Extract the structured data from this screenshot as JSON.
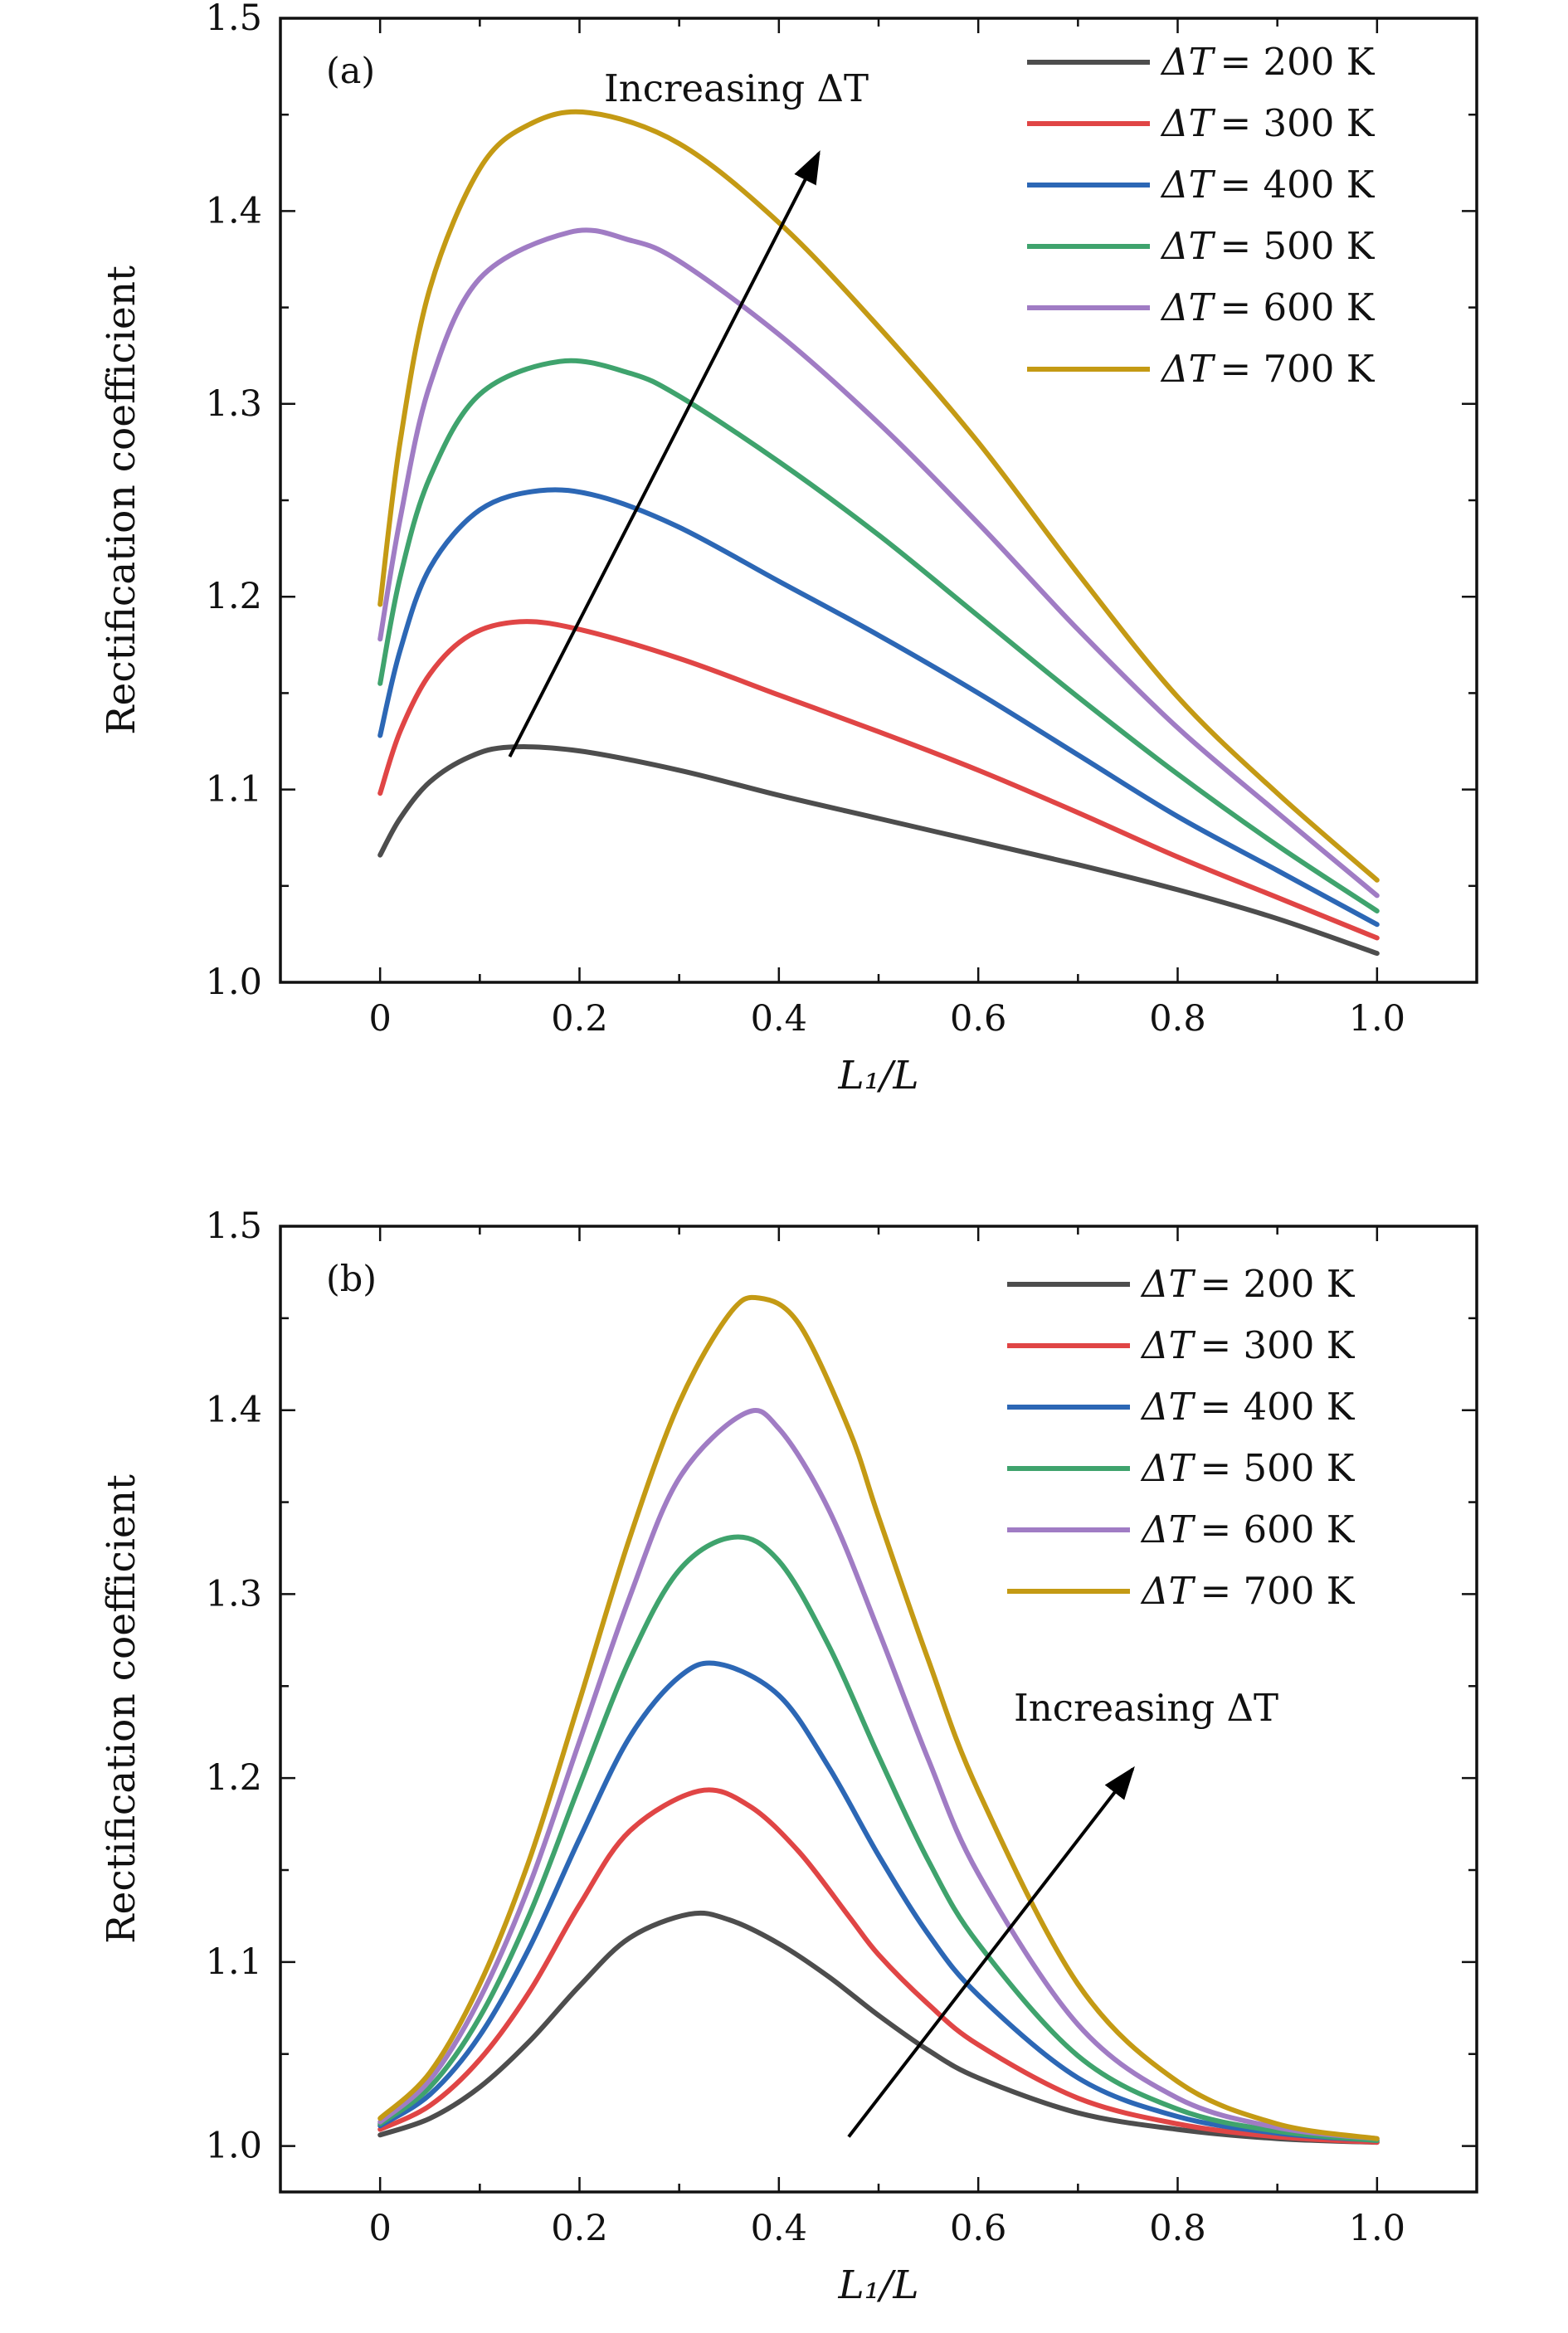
{
  "chart_data": [
    {
      "type": "line",
      "panel_label": "(a)",
      "xlabel": "L₁/L",
      "ylabel": "Rectification coefficient",
      "xlim": [
        -0.1,
        1.1
      ],
      "ylim": [
        1.0,
        1.5
      ],
      "x_ticks": [
        "0",
        "0.2",
        "0.4",
        "0.6",
        "0.8",
        "1.0"
      ],
      "y_ticks": [
        "1.0",
        "1.1",
        "1.2",
        "1.3",
        "1.4",
        "1.5"
      ],
      "legend_position": "top-right",
      "annotation": {
        "text": "Increasing ΔT",
        "from": [
          0.13,
          1.117
        ],
        "to": [
          0.44,
          1.43
        ]
      },
      "series": [
        {
          "name": "ΔT = 200 K",
          "label_lhs": "ΔT",
          "label_rhs": "= 200 K",
          "color": "#4d4d4d",
          "x": [
            0,
            0.02,
            0.05,
            0.09,
            0.13,
            0.2,
            0.3,
            0.4,
            0.5,
            0.6,
            0.7,
            0.8,
            0.9,
            1.0
          ],
          "y": [
            1.066,
            1.085,
            1.104,
            1.117,
            1.122,
            1.12,
            1.11,
            1.097,
            1.085,
            1.073,
            1.061,
            1.048,
            1.033,
            1.015
          ]
        },
        {
          "name": "ΔT = 300 K",
          "label_lhs": "ΔT",
          "label_rhs": "= 300 K",
          "color": "#e04545",
          "x": [
            0,
            0.02,
            0.05,
            0.09,
            0.14,
            0.2,
            0.3,
            0.4,
            0.5,
            0.6,
            0.7,
            0.8,
            0.9,
            1.0
          ],
          "y": [
            1.098,
            1.13,
            1.16,
            1.18,
            1.187,
            1.183,
            1.168,
            1.149,
            1.13,
            1.11,
            1.088,
            1.065,
            1.044,
            1.023
          ]
        },
        {
          "name": "ΔT = 400 K",
          "label_lhs": "ΔT",
          "label_rhs": "= 400 K",
          "color": "#2c67b5",
          "x": [
            0,
            0.02,
            0.05,
            0.1,
            0.16,
            0.22,
            0.3,
            0.4,
            0.5,
            0.6,
            0.7,
            0.8,
            0.9,
            1.0
          ],
          "y": [
            1.128,
            1.172,
            1.215,
            1.245,
            1.255,
            1.252,
            1.236,
            1.208,
            1.18,
            1.15,
            1.118,
            1.086,
            1.058,
            1.03
          ]
        },
        {
          "name": "ΔT = 500 K",
          "label_lhs": "ΔT",
          "label_rhs": "= 500 K",
          "color": "#3fa36d",
          "x": [
            0,
            0.02,
            0.05,
            0.1,
            0.18,
            0.25,
            0.3,
            0.4,
            0.5,
            0.6,
            0.7,
            0.8,
            0.9,
            1.0
          ],
          "y": [
            1.155,
            1.21,
            1.262,
            1.305,
            1.322,
            1.316,
            1.304,
            1.27,
            1.232,
            1.19,
            1.148,
            1.108,
            1.071,
            1.037
          ]
        },
        {
          "name": "ΔT = 600 K",
          "label_lhs": "ΔT",
          "label_rhs": "= 600 K",
          "color": "#a07cc4",
          "x": [
            0,
            0.02,
            0.05,
            0.1,
            0.19,
            0.25,
            0.3,
            0.4,
            0.5,
            0.6,
            0.7,
            0.8,
            0.9,
            1.0
          ],
          "y": [
            1.178,
            1.24,
            1.31,
            1.365,
            1.389,
            1.385,
            1.374,
            1.336,
            1.29,
            1.238,
            1.183,
            1.132,
            1.088,
            1.045
          ]
        },
        {
          "name": "ΔT = 700 K",
          "label_lhs": "ΔT",
          "label_rhs": "= 700 K",
          "color": "#c49a14",
          "x": [
            0,
            0.02,
            0.05,
            0.1,
            0.15,
            0.21,
            0.3,
            0.4,
            0.5,
            0.6,
            0.7,
            0.8,
            0.9,
            1.0
          ],
          "y": [
            1.196,
            1.28,
            1.36,
            1.422,
            1.445,
            1.451,
            1.435,
            1.394,
            1.34,
            1.28,
            1.212,
            1.148,
            1.098,
            1.053
          ]
        }
      ]
    },
    {
      "type": "line",
      "panel_label": "(b)",
      "xlabel": "L₁/L",
      "ylabel": "Rectification coefficient",
      "xlim": [
        -0.1,
        1.1
      ],
      "ylim": [
        0.975,
        1.5
      ],
      "x_ticks": [
        "0",
        "0.2",
        "0.4",
        "0.6",
        "0.8",
        "1.0"
      ],
      "y_ticks": [
        "1.0",
        "1.1",
        "1.2",
        "1.3",
        "1.4",
        "1.5"
      ],
      "legend_position": "top-right",
      "annotation": {
        "text": "Increasing ΔT",
        "from": [
          0.47,
          1.005
        ],
        "to": [
          0.755,
          1.205
        ]
      },
      "series": [
        {
          "name": "ΔT = 200 K",
          "label_lhs": "ΔT",
          "label_rhs": "= 200 K",
          "color": "#4d4d4d",
          "x": [
            0,
            0.05,
            0.1,
            0.15,
            0.2,
            0.25,
            0.31,
            0.35,
            0.4,
            0.45,
            0.5,
            0.55,
            0.6,
            0.7,
            0.8,
            0.9,
            1.0
          ],
          "y": [
            1.006,
            1.015,
            1.032,
            1.057,
            1.087,
            1.113,
            1.126,
            1.123,
            1.11,
            1.092,
            1.071,
            1.052,
            1.037,
            1.018,
            1.009,
            1.004,
            1.002
          ]
        },
        {
          "name": "ΔT = 300 K",
          "label_lhs": "ΔT",
          "label_rhs": "= 300 K",
          "color": "#e04545",
          "x": [
            0,
            0.05,
            0.1,
            0.15,
            0.2,
            0.25,
            0.32,
            0.37,
            0.42,
            0.47,
            0.5,
            0.55,
            0.6,
            0.7,
            0.8,
            0.9,
            1.0
          ],
          "y": [
            1.009,
            1.022,
            1.047,
            1.084,
            1.131,
            1.171,
            1.193,
            1.185,
            1.16,
            1.125,
            1.104,
            1.077,
            1.055,
            1.026,
            1.012,
            1.005,
            1.002
          ]
        },
        {
          "name": "ΔT = 400 K",
          "label_lhs": "ΔT",
          "label_rhs": "= 400 K",
          "color": "#2c67b5",
          "x": [
            0,
            0.05,
            0.1,
            0.15,
            0.2,
            0.25,
            0.3,
            0.34,
            0.4,
            0.45,
            0.5,
            0.55,
            0.6,
            0.7,
            0.8,
            0.9,
            1.0
          ],
          "y": [
            1.011,
            1.028,
            1.06,
            1.108,
            1.167,
            1.222,
            1.255,
            1.262,
            1.245,
            1.206,
            1.158,
            1.115,
            1.082,
            1.037,
            1.016,
            1.007,
            1.003
          ]
        },
        {
          "name": "ΔT = 500 K",
          "label_lhs": "ΔT",
          "label_rhs": "= 500 K",
          "color": "#3fa36d",
          "x": [
            0,
            0.05,
            0.1,
            0.15,
            0.2,
            0.25,
            0.3,
            0.355,
            0.4,
            0.45,
            0.5,
            0.55,
            0.6,
            0.7,
            0.8,
            0.9,
            1.0
          ],
          "y": [
            1.012,
            1.032,
            1.07,
            1.126,
            1.196,
            1.264,
            1.313,
            1.331,
            1.318,
            1.272,
            1.212,
            1.155,
            1.11,
            1.049,
            1.02,
            1.008,
            1.003
          ]
        },
        {
          "name": "ΔT = 600 K",
          "label_lhs": "ΔT",
          "label_rhs": "= 600 K",
          "color": "#a07cc4",
          "x": [
            0,
            0.05,
            0.1,
            0.15,
            0.2,
            0.25,
            0.3,
            0.365,
            0.4,
            0.45,
            0.5,
            0.55,
            0.6,
            0.7,
            0.8,
            0.9,
            1.0
          ],
          "y": [
            1.013,
            1.036,
            1.08,
            1.142,
            1.22,
            1.298,
            1.363,
            1.398,
            1.39,
            1.346,
            1.28,
            1.21,
            1.148,
            1.066,
            1.026,
            1.01,
            1.004
          ]
        },
        {
          "name": "ΔT = 700 K",
          "label_lhs": "ΔT",
          "label_rhs": "= 700 K",
          "color": "#c49a14",
          "x": [
            0,
            0.05,
            0.1,
            0.15,
            0.2,
            0.25,
            0.3,
            0.35,
            0.38,
            0.42,
            0.47,
            0.5,
            0.55,
            0.6,
            0.7,
            0.8,
            0.9,
            1.0
          ],
          "y": [
            1.015,
            1.04,
            1.088,
            1.156,
            1.242,
            1.33,
            1.404,
            1.452,
            1.461,
            1.447,
            1.39,
            1.342,
            1.264,
            1.193,
            1.088,
            1.035,
            1.012,
            1.004
          ]
        }
      ]
    }
  ]
}
